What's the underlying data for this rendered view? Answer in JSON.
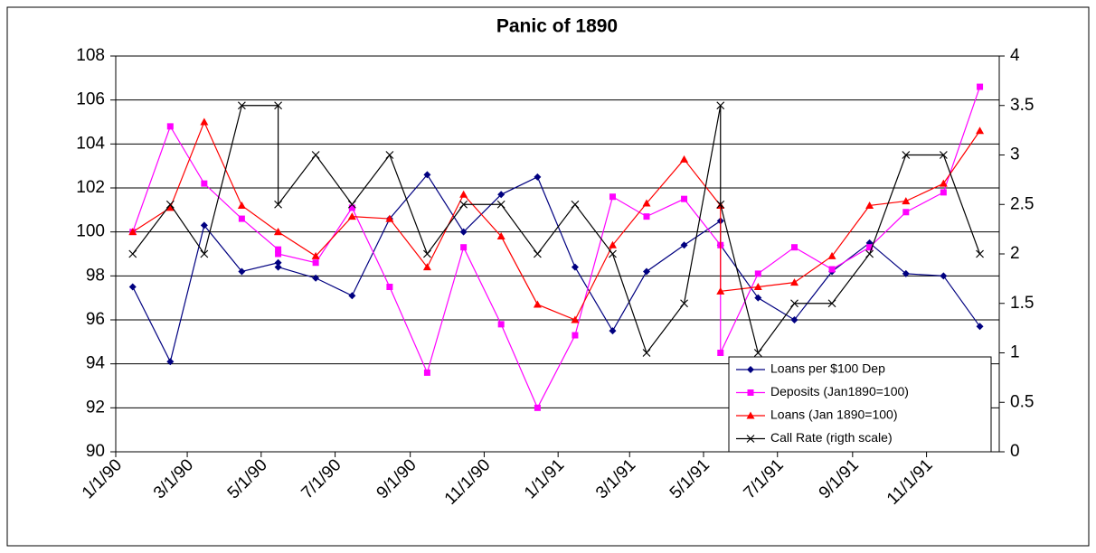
{
  "chart_data": {
    "type": "line",
    "title": "Panic of 1890",
    "x": [
      "1/15/90",
      "2/15/90",
      "3/15/90",
      "4/15/90",
      "5/15/90",
      "5/15/90",
      "6/15/90",
      "7/15/90",
      "8/15/90",
      "9/15/90",
      "10/15/90",
      "11/15/90",
      "12/15/90",
      "1/15/91",
      "2/15/91",
      "3/15/91",
      "4/15/91",
      "5/15/91",
      "5/15/91",
      "6/15/91",
      "7/15/91",
      "8/15/91",
      "9/15/91",
      "10/15/91",
      "11/15/91",
      "12/15/91"
    ],
    "series": [
      {
        "name": "Loans per $100 Dep",
        "color": "#000080",
        "marker": "diamond",
        "values": [
          97.5,
          94.1,
          100.3,
          98.2,
          98.6,
          98.4,
          97.9,
          97.1,
          100.6,
          102.6,
          100.0,
          101.7,
          102.5,
          98.4,
          95.5,
          98.2,
          99.4,
          100.5,
          99.4,
          97.0,
          96.0,
          98.2,
          99.5,
          98.1,
          98.0,
          95.7
        ]
      },
      {
        "name": "Deposits (Jan1890=100)",
        "color": "#ff00ff",
        "marker": "square",
        "values": [
          100.0,
          104.8,
          102.2,
          100.6,
          99.2,
          99.0,
          98.6,
          101.1,
          97.5,
          93.6,
          99.3,
          95.8,
          92.0,
          95.3,
          101.6,
          100.7,
          101.5,
          99.4,
          94.5,
          98.1,
          99.3,
          98.3,
          99.3,
          100.9,
          101.8,
          106.6
        ]
      },
      {
        "name": "Loans (Jan 1890=100)",
        "color": "#ff0000",
        "marker": "triangle",
        "values": [
          100.0,
          101.1,
          105.0,
          101.2,
          100.0,
          100.0,
          98.9,
          100.7,
          100.6,
          98.4,
          101.7,
          99.8,
          96.7,
          96.0,
          99.4,
          101.3,
          103.3,
          101.2,
          97.3,
          97.5,
          97.7,
          98.9,
          101.2,
          101.4,
          102.2,
          104.6
        ]
      },
      {
        "name": "Call Rate (rigth scale)",
        "color": "#000000",
        "marker": "x",
        "axis": "y2",
        "values": [
          2,
          2.5,
          2,
          3.5,
          3.5,
          2.5,
          3,
          2.5,
          3,
          2,
          2.5,
          2.5,
          2,
          2.5,
          2,
          1,
          1.5,
          3.5,
          2.5,
          1,
          1.5,
          1.5,
          2,
          3,
          3,
          2
        ]
      }
    ],
    "xlim": [
      "1/1/90",
      "12/31/91"
    ],
    "xticks": [
      "1/1/90",
      "3/1/90",
      "5/1/90",
      "7/1/90",
      "9/1/90",
      "11/1/90",
      "1/1/91",
      "3/1/91",
      "5/1/91",
      "7/1/91",
      "9/1/91",
      "11/1/91"
    ],
    "ylim": [
      90,
      108
    ],
    "yticks": [
      90,
      92,
      94,
      96,
      98,
      100,
      102,
      104,
      106,
      108
    ],
    "y2lim": [
      0,
      4
    ],
    "y2ticks": [
      0,
      0.5,
      1,
      1.5,
      2,
      2.5,
      3,
      3.5,
      4
    ],
    "grid": true,
    "legend": "bottom-right"
  }
}
